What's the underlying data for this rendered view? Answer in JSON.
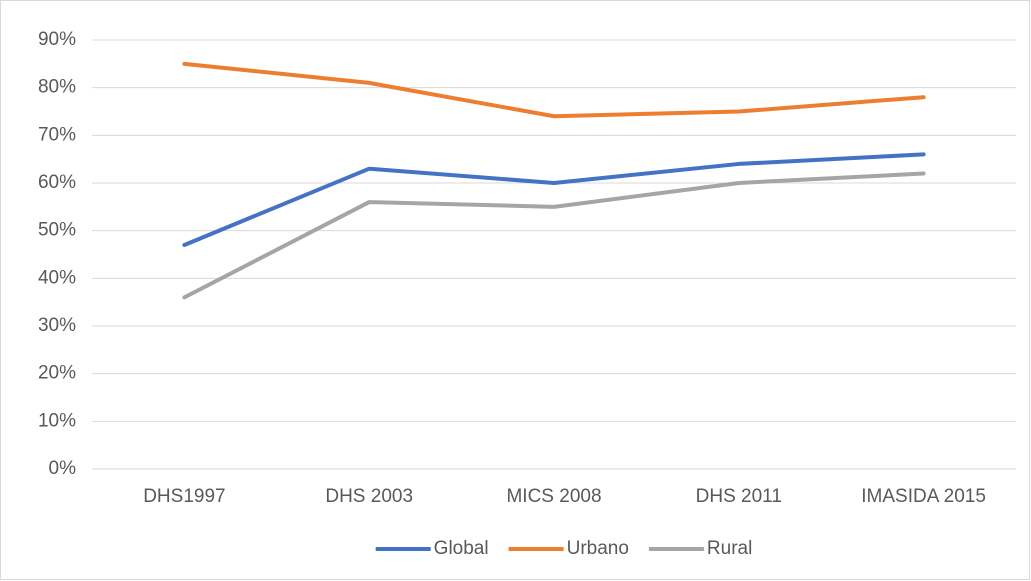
{
  "chart_data": {
    "type": "line",
    "categories": [
      "DHS1997",
      "DHS 2003",
      "MICS 2008",
      "DHS 2011",
      "IMASIDA 2015"
    ],
    "series": [
      {
        "name": "Global",
        "color": "#4472c4",
        "values": [
          47,
          63,
          60,
          64,
          66
        ]
      },
      {
        "name": "Urbano",
        "color": "#ed7d31",
        "values": [
          85,
          81,
          74,
          75,
          78
        ]
      },
      {
        "name": "Rural",
        "color": "#a5a5a5",
        "values": [
          36,
          56,
          55,
          60,
          62
        ]
      }
    ],
    "ylim": [
      0,
      90
    ],
    "yticks": [
      {
        "value": 0,
        "label": "0%"
      },
      {
        "value": 10,
        "label": "10%"
      },
      {
        "value": 20,
        "label": "20%"
      },
      {
        "value": 30,
        "label": "30%"
      },
      {
        "value": 40,
        "label": "40%"
      },
      {
        "value": 50,
        "label": "50%"
      },
      {
        "value": 60,
        "label": "60%"
      },
      {
        "value": 70,
        "label": "70%"
      },
      {
        "value": 80,
        "label": "80%"
      },
      {
        "value": 90,
        "label": "90%"
      }
    ],
    "grid": true,
    "legend": "bottom"
  }
}
